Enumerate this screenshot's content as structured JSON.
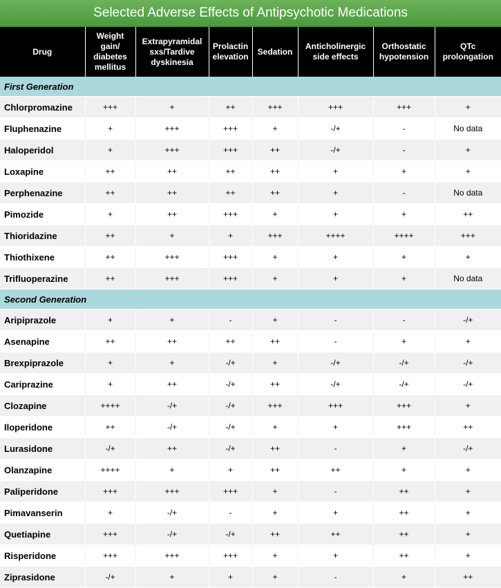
{
  "title": "Selected Adverse Effects of Antipsychotic Medications",
  "columns": [
    "Drug",
    "Weight gain/ diabetes mellitus",
    "Extrapyramidal sxs/Tardive dyskinesia",
    "Prolactin elevation",
    "Sedation",
    "Anticholinergic side effects",
    "Orthostatic hypotension",
    "QTc prolongation"
  ],
  "sections": [
    {
      "label": "First Generation",
      "rows": [
        [
          "Chlorpromazine",
          "+++",
          "+",
          "++",
          "+++",
          "+++",
          "+++",
          "+"
        ],
        [
          "Fluphenazine",
          "+",
          "+++",
          "+++",
          "+",
          "-/+",
          "-",
          "No data"
        ],
        [
          "Haloperidol",
          "+",
          "+++",
          "+++",
          "++",
          "-/+",
          "-",
          "+"
        ],
        [
          "Loxapine",
          "++",
          "++",
          "++",
          "++",
          "+",
          "+",
          "+"
        ],
        [
          "Perphenazine",
          "++",
          "++",
          "++",
          "++",
          "+",
          "-",
          "No data"
        ],
        [
          "Pimozide",
          "+",
          "++",
          "+++",
          "+",
          "+",
          "+",
          "++"
        ],
        [
          "Thioridazine",
          "++",
          "+",
          "+",
          "+++",
          "++++",
          "++++",
          "+++"
        ],
        [
          "Thiothixene",
          "++",
          "+++",
          "+++",
          "+",
          "+",
          "+",
          "+"
        ],
        [
          "Trifluoperazine",
          "++",
          "+++",
          "+++",
          "+",
          "+",
          "+",
          "No data"
        ]
      ]
    },
    {
      "label": "Second Generation",
      "rows": [
        [
          "Aripiprazole",
          "+",
          "+",
          "-",
          "+",
          "-",
          "-",
          "-/+"
        ],
        [
          "Asenapine",
          "++",
          "++",
          "++",
          "++",
          "-",
          "+",
          "+"
        ],
        [
          "Brexpiprazole",
          "+",
          "+",
          "-/+",
          "+",
          "-/+",
          "-/+",
          "-/+"
        ],
        [
          "Cariprazine",
          "+",
          "++",
          "-/+",
          "++",
          "-/+",
          "-/+",
          "-/+"
        ],
        [
          "Clozapine",
          "++++",
          "-/+",
          "-/+",
          "+++",
          "+++",
          "+++",
          "+"
        ],
        [
          "Iloperidone",
          "++",
          "-/+",
          "-/+",
          "+",
          "+",
          "+++",
          "++"
        ],
        [
          "Lurasidone",
          "-/+",
          "++",
          "-/+",
          "++",
          "-",
          "+",
          "-/+"
        ],
        [
          "Olanzapine",
          "++++",
          "+",
          "+",
          "++",
          "++",
          "+",
          "+"
        ],
        [
          "Paliperidone",
          "+++",
          "+++",
          "+++",
          "+",
          "-",
          "++",
          "+"
        ],
        [
          "Pimavanserin",
          "+",
          "-/+",
          "-",
          "+",
          "+",
          "++",
          "+"
        ],
        [
          "Quetiapine",
          "+++",
          "-/+",
          "-/+",
          "++",
          "++",
          "++",
          "+"
        ],
        [
          "Risperidone",
          "+++",
          "+++",
          "+++",
          "+",
          "+",
          "++",
          "+"
        ],
        [
          "Ziprasidone",
          "-/+",
          "+",
          "+",
          "+",
          "-",
          "+",
          "++"
        ]
      ]
    }
  ],
  "colors": {
    "title_bg": "#5aa548",
    "header_bg": "#000000",
    "section_bg": "#abd8dc",
    "row_alt_bg": "#f0f0f0"
  }
}
